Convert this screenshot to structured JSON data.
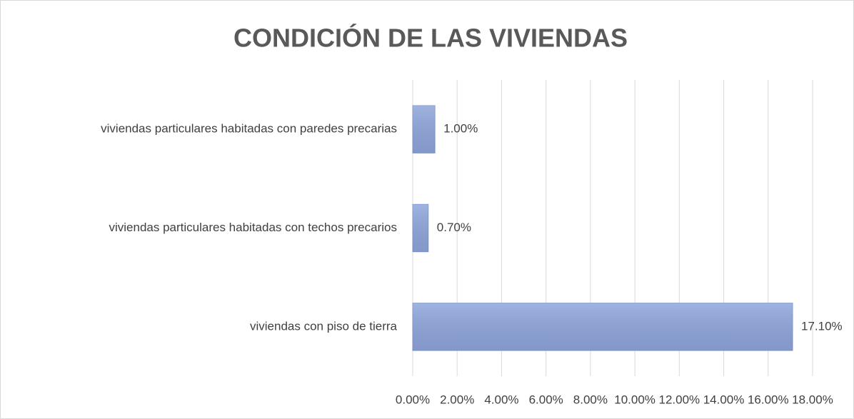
{
  "chart_data": {
    "type": "bar",
    "orientation": "horizontal",
    "title": "CONDICIÓN DE LAS VIVIENDAS",
    "categories": [
      "viviendas particulares habitadas con paredes precarias",
      "viviendas particulares habitadas con techos precarios",
      "viviendas con piso de tierra"
    ],
    "values": [
      1.0,
      0.7,
      17.1
    ],
    "value_labels": [
      "1.00%",
      "0.70%",
      "17.10%"
    ],
    "color": "#8fa6dc",
    "xlim": [
      0,
      18
    ],
    "xticks": [
      {
        "value": 0,
        "label": "0.00%"
      },
      {
        "value": 2,
        "label": "2.00%"
      },
      {
        "value": 4,
        "label": "4.00%"
      },
      {
        "value": 6,
        "label": "6.00%"
      },
      {
        "value": 8,
        "label": "8.00%"
      },
      {
        "value": 10,
        "label": "10.00%"
      },
      {
        "value": 12,
        "label": "12.00%"
      },
      {
        "value": 14,
        "label": "14.00%"
      },
      {
        "value": 16,
        "label": "16.00%"
      },
      {
        "value": 18,
        "label": "18.00%"
      }
    ],
    "grid": true
  }
}
